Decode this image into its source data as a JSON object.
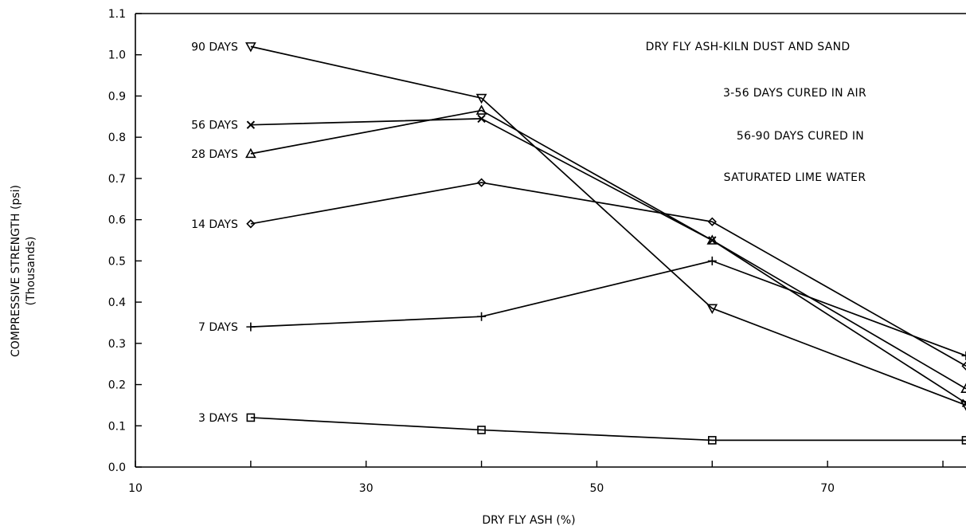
{
  "chart_data": {
    "type": "line",
    "xlabel": "DRY FLY ASH (%)",
    "ylabel": "COMPRESSIVE STRENGTH (psi)",
    "ylabel_sub": "(Thousands)",
    "xlim": [
      10,
      82
    ],
    "ylim": [
      0.0,
      1.1
    ],
    "x_ticks": [
      10,
      30,
      50,
      70
    ],
    "y_ticks": [
      "0.0",
      "0.1",
      "0.2",
      "0.3",
      "0.4",
      "0.5",
      "0.6",
      "0.7",
      "0.8",
      "0.9",
      "1.0",
      "1.1"
    ],
    "grid": false,
    "annotations": [
      "DRY FLY ASH-KILN DUST AND SAND",
      "3-56 DAYS CURED IN AIR",
      "56-90 DAYS CURED IN",
      "SATURATED LIME WATER"
    ],
    "series": [
      {
        "name": "3 DAYS",
        "marker": "square",
        "x": [
          20,
          40,
          60,
          82
        ],
        "y": [
          0.12,
          0.09,
          0.065,
          0.065
        ]
      },
      {
        "name": "7 DAYS",
        "marker": "plus",
        "x": [
          20,
          40,
          60,
          82
        ],
        "y": [
          0.34,
          0.365,
          0.5,
          0.27
        ]
      },
      {
        "name": "14 DAYS",
        "marker": "diamond",
        "x": [
          20,
          40,
          60,
          82
        ],
        "y": [
          0.59,
          0.69,
          0.595,
          0.245
        ]
      },
      {
        "name": "28 DAYS",
        "marker": "triangle",
        "x": [
          20,
          40,
          60,
          82
        ],
        "y": [
          0.76,
          0.865,
          0.55,
          0.19
        ]
      },
      {
        "name": "56 DAYS",
        "marker": "x",
        "x": [
          20,
          40,
          60,
          82
        ],
        "y": [
          0.83,
          0.845,
          0.55,
          0.155
        ]
      },
      {
        "name": "90 DAYS",
        "marker": "tri-down",
        "x": [
          20,
          40,
          60,
          82
        ],
        "y": [
          1.02,
          0.895,
          0.385,
          0.15
        ]
      }
    ]
  }
}
